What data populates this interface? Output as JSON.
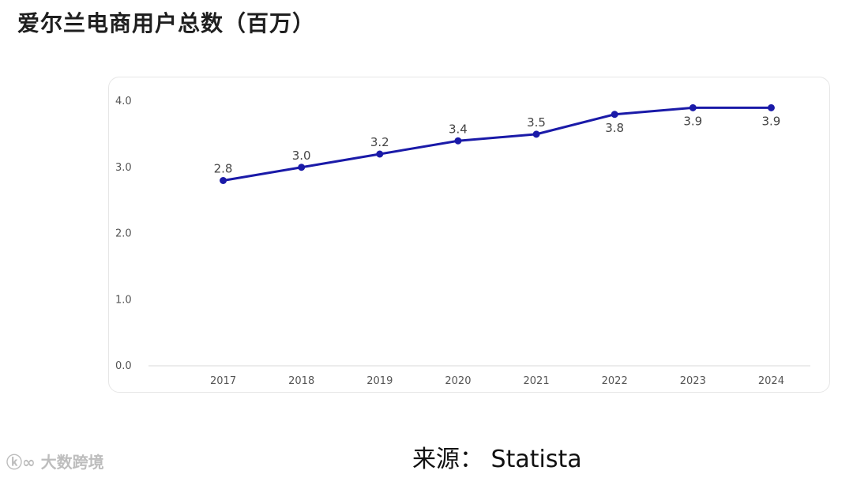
{
  "title": "爱尔兰电商用户总数（百万）",
  "source": "来源：  Statista",
  "watermark": "大数跨境",
  "colors": {
    "line": "#1a1aa8",
    "grid_axis": "#d9d9d9"
  },
  "chart_data": {
    "type": "line",
    "categories": [
      "2017",
      "2018",
      "2019",
      "2020",
      "2021",
      "2022",
      "2023",
      "2024"
    ],
    "series": [
      {
        "values": [
          2.8,
          3.0,
          3.2,
          3.4,
          3.5,
          3.8,
          3.9,
          3.9
        ],
        "labels": [
          "2.8",
          "3.0",
          "3.2",
          "3.4",
          "3.5",
          "3.8",
          "3.9",
          "3.9"
        ]
      }
    ],
    "y_ticks": [
      "0.0",
      "1.0",
      "2.0",
      "3.0",
      "4.0"
    ],
    "ylim": [
      0,
      4
    ],
    "grid": false,
    "legend": "none"
  }
}
